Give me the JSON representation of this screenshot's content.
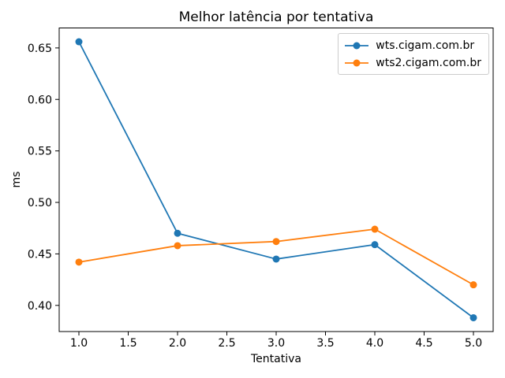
{
  "chart_data": {
    "type": "line",
    "title": "Melhor latência por tentativa",
    "xlabel": "Tentativa",
    "ylabel": "ms",
    "x": [
      1,
      2,
      3,
      4,
      5
    ],
    "series": [
      {
        "name": "wts.cigam.com.br",
        "color": "#1f77b4",
        "marker": "circle",
        "values": [
          0.656,
          0.47,
          0.445,
          0.459,
          0.388
        ]
      },
      {
        "name": "wts2.cigam.com.br",
        "color": "#ff7f0e",
        "marker": "circle",
        "values": [
          0.442,
          0.458,
          0.462,
          0.474,
          0.42
        ]
      }
    ],
    "xtick_values": [
      1.0,
      1.5,
      2.0,
      2.5,
      3.0,
      3.5,
      4.0,
      4.5,
      5.0
    ],
    "xtick_labels": [
      "1.0",
      "1.5",
      "2.0",
      "2.5",
      "3.0",
      "3.5",
      "4.0",
      "4.5",
      "5.0"
    ],
    "ytick_values": [
      0.4,
      0.45,
      0.5,
      0.55,
      0.6,
      0.65
    ],
    "ytick_labels": [
      "0.40",
      "0.45",
      "0.50",
      "0.55",
      "0.60",
      "0.65"
    ],
    "xlim": [
      0.8,
      5.2
    ],
    "ylim": [
      0.3746,
      0.6694
    ],
    "grid": false,
    "legend_position": "upper right",
    "colors": {
      "axis": "#000000",
      "legend_border": "#cccccc",
      "background": "#ffffff"
    }
  }
}
